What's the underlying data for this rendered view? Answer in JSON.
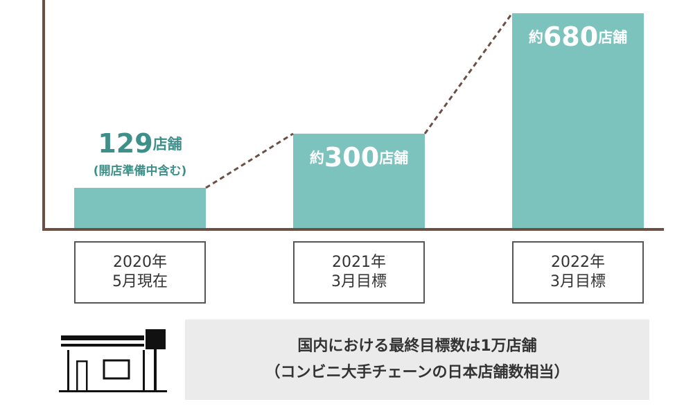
{
  "chart_data": {
    "type": "bar",
    "categories": [
      "2020年\n5月現在",
      "2021年\n3月目標",
      "2022年\n3月目標"
    ],
    "values": [
      129,
      300,
      680
    ],
    "value_labels": [
      "129店舗",
      "約300店舗",
      "約680店舗"
    ],
    "annotation": "(開店準備中含む)",
    "color": "#7cc2bd",
    "ylim": [
      0,
      700
    ],
    "notes": [
      "国内における最終目標数は1万店舗",
      "（コンビニ大手チェーンの日本店舗数相当）"
    ]
  }
}
